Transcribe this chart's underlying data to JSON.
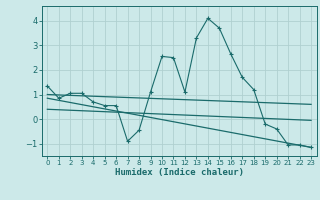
{
  "xlabel": "Humidex (Indice chaleur)",
  "background_color": "#cce9e9",
  "grid_color": "#b0d0d0",
  "line_color": "#1a6b6b",
  "xlim": [
    -0.5,
    23.5
  ],
  "ylim": [
    -1.5,
    4.6
  ],
  "yticks": [
    -1,
    0,
    1,
    2,
    3,
    4
  ],
  "xticks": [
    0,
    1,
    2,
    3,
    4,
    5,
    6,
    7,
    8,
    9,
    10,
    11,
    12,
    13,
    14,
    15,
    16,
    17,
    18,
    19,
    20,
    21,
    22,
    23
  ],
  "series1_x": [
    0,
    1,
    2,
    3,
    4,
    5,
    6,
    7,
    8,
    9,
    10,
    11,
    12,
    13,
    14,
    15,
    16,
    17,
    18,
    19,
    20,
    21,
    22,
    23
  ],
  "series1_y": [
    1.35,
    0.85,
    1.05,
    1.05,
    0.7,
    0.55,
    0.55,
    -0.9,
    -0.45,
    1.1,
    2.55,
    2.5,
    1.1,
    3.3,
    4.1,
    3.7,
    2.65,
    1.7,
    1.2,
    -0.2,
    -0.4,
    -1.05,
    -1.05,
    -1.15
  ],
  "series2_x": [
    0,
    23
  ],
  "series2_y": [
    1.0,
    0.6
  ],
  "series3_x": [
    0,
    23
  ],
  "series3_y": [
    0.85,
    -1.15
  ],
  "series4_x": [
    0,
    23
  ],
  "series4_y": [
    0.4,
    -0.05
  ]
}
